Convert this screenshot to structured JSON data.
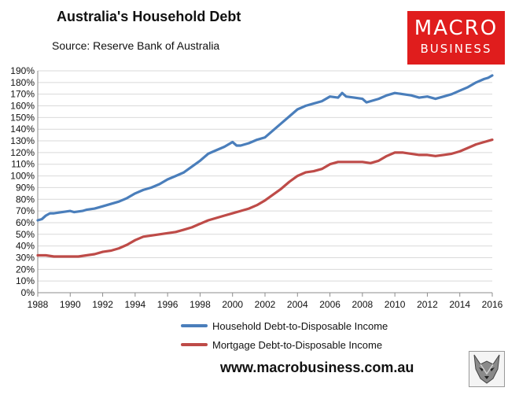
{
  "title": "Australia's Household Debt",
  "subtitle": "Source: Reserve Bank of Australia",
  "logo": {
    "line1": "MACRO",
    "line2": "BUSINESS",
    "color": "#e01d1d"
  },
  "website": "www.macrobusiness.com.au",
  "wolf_icon": "wolf-head-icon",
  "chart_data": {
    "type": "line",
    "title": "",
    "xlabel": "",
    "ylabel": "",
    "xlim": [
      1988,
      2016
    ],
    "ylim": [
      0,
      190
    ],
    "x_ticks": [
      "1988",
      "1990",
      "1992",
      "1994",
      "1996",
      "1998",
      "2000",
      "2002",
      "2004",
      "2006",
      "2008",
      "2010",
      "2012",
      "2014",
      "2016"
    ],
    "y_ticks": [
      "0%",
      "10%",
      "20%",
      "30%",
      "40%",
      "50%",
      "60%",
      "70%",
      "80%",
      "90%",
      "100%",
      "110%",
      "120%",
      "130%",
      "140%",
      "150%",
      "160%",
      "170%",
      "180%",
      "190%"
    ],
    "grid": "horizontal",
    "legend": "bottom",
    "series": [
      {
        "name": "Household Debt-to-Disposable Income",
        "color": "#4a7ebb",
        "x": [
          1988,
          1988.25,
          1988.5,
          1988.75,
          1989,
          1989.5,
          1990,
          1990.25,
          1990.75,
          1991,
          1991.5,
          1992,
          1992.5,
          1993,
          1993.5,
          1994,
          1994.5,
          1995,
          1995.5,
          1996,
          1996.5,
          1997,
          1997.5,
          1998,
          1998.5,
          1999,
          1999.5,
          2000,
          2000.25,
          2000.5,
          2001,
          2001.5,
          2002,
          2002.5,
          2003,
          2003.5,
          2004,
          2004.5,
          2005,
          2005.5,
          2006,
          2006.5,
          2006.75,
          2007,
          2007.5,
          2008,
          2008.25,
          2008.5,
          2009,
          2009.5,
          2010,
          2010.5,
          2011,
          2011.5,
          2012,
          2012.5,
          2013,
          2013.5,
          2014,
          2014.5,
          2015,
          2015.5,
          2015.75,
          2016
        ],
        "values": [
          62,
          63,
          66,
          68,
          68,
          69,
          70,
          69,
          70,
          71,
          72,
          74,
          76,
          78,
          81,
          85,
          88,
          90,
          93,
          97,
          100,
          103,
          108,
          113,
          119,
          122,
          125,
          129,
          126,
          126,
          128,
          131,
          133,
          139,
          145,
          151,
          157,
          160,
          162,
          164,
          168,
          167,
          171,
          168,
          167,
          166,
          163,
          164,
          166,
          169,
          171,
          170,
          169,
          167,
          168,
          166,
          168,
          170,
          173,
          176,
          180,
          183,
          184,
          186
        ]
      },
      {
        "name": "Mortgage Debt-to-Disposable Income",
        "color": "#be4b48",
        "x": [
          1988,
          1988.5,
          1989,
          1989.5,
          1990,
          1990.5,
          1991,
          1991.5,
          1992,
          1992.5,
          1993,
          1993.5,
          1994,
          1994.5,
          1995,
          1995.5,
          1996,
          1996.5,
          1997,
          1997.5,
          1998,
          1998.5,
          1999,
          1999.5,
          2000,
          2000.5,
          2001,
          2001.5,
          2002,
          2002.5,
          2003,
          2003.5,
          2004,
          2004.5,
          2005,
          2005.5,
          2006,
          2006.5,
          2007,
          2007.5,
          2008,
          2008.5,
          2009,
          2009.5,
          2010,
          2010.5,
          2011,
          2011.5,
          2012,
          2012.5,
          2013,
          2013.5,
          2014,
          2014.5,
          2015,
          2015.5,
          2016
        ],
        "values": [
          32,
          32,
          31,
          31,
          31,
          31,
          32,
          33,
          35,
          36,
          38,
          41,
          45,
          48,
          49,
          50,
          51,
          52,
          54,
          56,
          59,
          62,
          64,
          66,
          68,
          70,
          72,
          75,
          79,
          84,
          89,
          95,
          100,
          103,
          104,
          106,
          110,
          112,
          112,
          112,
          112,
          111,
          113,
          117,
          120,
          120,
          119,
          118,
          118,
          117,
          118,
          119,
          121,
          124,
          127,
          129,
          131
        ]
      }
    ]
  }
}
